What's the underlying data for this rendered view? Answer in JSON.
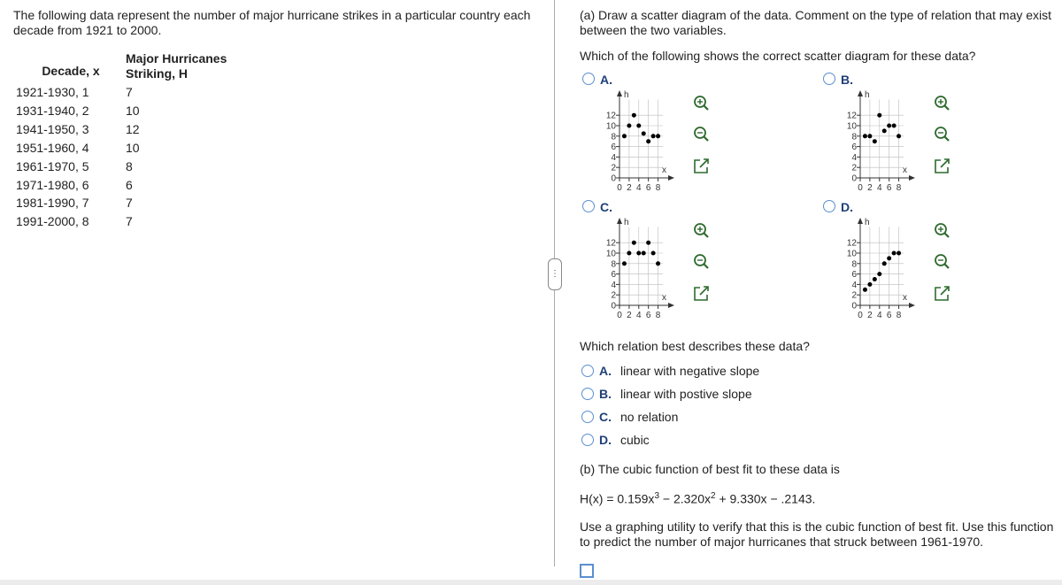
{
  "intro": "The following data represent the number of major hurricane strikes in a particular country each decade from 1921 to 2000.",
  "table": {
    "headers": [
      "Decade, x",
      "Major Hurricanes Striking, H"
    ],
    "rows": [
      [
        "1921-1930, 1",
        "7"
      ],
      [
        "1931-1940, 2",
        "10"
      ],
      [
        "1941-1950, 3",
        "12"
      ],
      [
        "1951-1960, 4",
        "10"
      ],
      [
        "1961-1970, 5",
        "8"
      ],
      [
        "1971-1980, 6",
        "6"
      ],
      [
        "1981-1990, 7",
        "7"
      ],
      [
        "1991-2000, 8",
        "7"
      ]
    ]
  },
  "part_a": "(a) Draw a scatter diagram of the data. Comment on the type of relation that may exist between the two variables.",
  "question_1": "Which of the following shows the correct scatter diagram for these data?",
  "scatter_axes": {
    "x_label": "x",
    "y_label": "h",
    "xlim": [
      0,
      9
    ],
    "ylim": [
      0,
      15
    ],
    "xticks": [
      0,
      2,
      4,
      6,
      8
    ],
    "yticks": [
      0,
      2,
      4,
      6,
      8,
      10,
      12
    ]
  },
  "scatter_options": [
    {
      "letter": "A.",
      "x": [
        1,
        2,
        3,
        4,
        5,
        6,
        7,
        8
      ],
      "y": [
        8,
        10,
        12,
        10,
        8.5,
        7,
        8,
        8
      ]
    },
    {
      "letter": "B.",
      "x": [
        1,
        2,
        3,
        4,
        5,
        6,
        7,
        8
      ],
      "y": [
        8,
        8,
        7,
        12,
        9,
        10,
        10,
        8
      ]
    },
    {
      "letter": "C.",
      "x": [
        1,
        2,
        3,
        4,
        5,
        6,
        7,
        8
      ],
      "y": [
        8,
        10,
        12,
        10,
        10,
        12,
        10,
        8
      ]
    },
    {
      "letter": "D.",
      "x": [
        1,
        2,
        3,
        4,
        5,
        6,
        7,
        8
      ],
      "y": [
        3,
        4,
        5,
        6,
        8,
        9,
        10,
        10
      ]
    }
  ],
  "question_2": "Which relation best describes these data?",
  "relation_options": [
    {
      "letter": "A.",
      "text": "linear with negative slope"
    },
    {
      "letter": "B.",
      "text": "linear with postive slope"
    },
    {
      "letter": "C.",
      "text": "no relation"
    },
    {
      "letter": "D.",
      "text": "cubic"
    }
  ],
  "part_b": "(b) The cubic function of best fit to these data is",
  "formula": [
    "H(x) = 0.159x",
    "3",
    " − 2.320x",
    "2",
    " + 9.330x − .2143."
  ],
  "instructions": "Use a graphing utility to verify that this is the cubic function of best fit. Use this function to predict the number of major hurricanes that struck between 1961-1970."
}
